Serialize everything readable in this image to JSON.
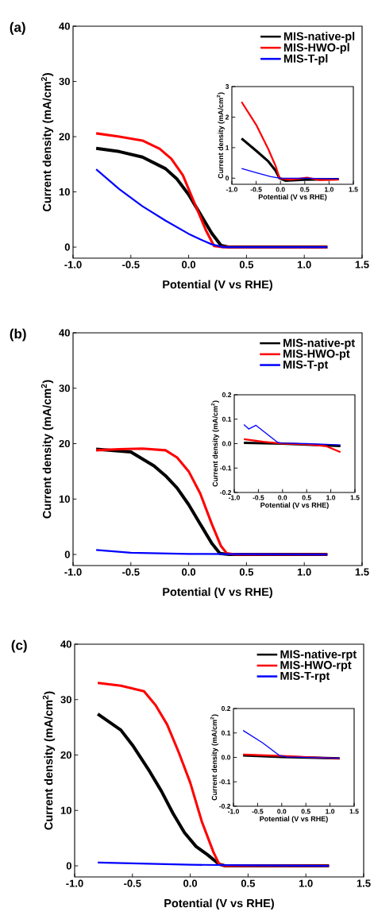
{
  "chart_data": [
    {
      "type": "line",
      "annotations": [
        "(a)"
      ],
      "xlabel": "Potential (V vs RHE)",
      "ylabel": "Current density (mA/cm$^{2}$)",
      "xlim": [
        -1,
        1.5
      ],
      "ylim": [
        -2,
        40
      ],
      "xticks": [
        {
          "value": -1,
          "label": "-1.0"
        },
        {
          "value": -0.5,
          "label": "-0.5"
        },
        {
          "value": 0,
          "label": "0.0"
        },
        {
          "value": 0.5,
          "label": "0.5"
        },
        {
          "value": 1,
          "label": "1.0"
        },
        {
          "value": 1.5,
          "label": "1.5"
        }
      ],
      "yticks": [
        0,
        10,
        20,
        30,
        40
      ],
      "legend": "top right",
      "series": [
        {
          "name": "MIS-native-pl",
          "color": "#000000",
          "x": [
            -0.8,
            -0.6,
            -0.4,
            -0.2,
            -0.1,
            0,
            0.1,
            0.2,
            0.28,
            0.35,
            1.2
          ],
          "values": [
            17.9,
            17.3,
            16.3,
            14.2,
            12.3,
            9.5,
            6,
            2.5,
            0.3,
            0,
            0
          ]
        },
        {
          "name": "MIS-HWO-pl",
          "color": "#ff0000",
          "x": [
            -0.8,
            -0.6,
            -0.4,
            -0.25,
            -0.15,
            -0.05,
            0.05,
            0.15,
            0.22,
            0.3,
            1.2
          ],
          "values": [
            20.6,
            20,
            19.3,
            17.8,
            16,
            13,
            8,
            3,
            0.2,
            0,
            0
          ]
        },
        {
          "name": "MIS-T-pl",
          "color": "#0000ff",
          "x": [
            -0.8,
            -0.6,
            -0.4,
            -0.2,
            0,
            0.1,
            0.2,
            0.3,
            1.2
          ],
          "values": [
            14.1,
            10.5,
            7.4,
            4.8,
            2.4,
            1.4,
            0.5,
            0,
            0
          ]
        }
      ]
    },
    {
      "type": "line",
      "xlabel": "Potential (V vs RHE)",
      "ylabel": "Current density (mA/cm$^{2}$)",
      "xlim": [
        -1,
        1.5
      ],
      "ylim": [
        -0.2,
        3
      ],
      "xticks": [
        {
          "value": -1,
          "label": "-1.0"
        },
        {
          "value": -0.5,
          "label": "-0.5"
        },
        {
          "value": 0,
          "label": "0.0"
        },
        {
          "value": 0.5,
          "label": "0.5"
        },
        {
          "value": 1,
          "label": "1.0"
        },
        {
          "value": 1.5,
          "label": "1.5"
        }
      ],
      "yticks": [
        0,
        1,
        2,
        3
      ],
      "series": [
        {
          "color": "#000000",
          "x": [
            -0.8,
            -0.5,
            -0.25,
            -0.1,
            -0.02,
            0.1,
            0.5,
            1.2
          ],
          "values": [
            1.3,
            0.9,
            0.55,
            0.25,
            0,
            -0.08,
            -0.05,
            -0.03
          ]
        },
        {
          "color": "#ff0000",
          "x": [
            -0.8,
            -0.5,
            -0.25,
            -0.1,
            -0.02,
            0.2,
            0.55,
            0.8,
            1.2
          ],
          "values": [
            2.5,
            1.75,
            0.95,
            0.4,
            0,
            -0.05,
            0.02,
            -0.06,
            -0.05
          ]
        },
        {
          "color": "#0000ff",
          "x": [
            -0.8,
            -0.5,
            -0.2,
            0,
            0.5,
            1.2
          ],
          "values": [
            0.32,
            0.18,
            0.05,
            0,
            0,
            -0.02
          ]
        }
      ]
    },
    {
      "type": "line",
      "annotations": [
        "(b)"
      ],
      "xlabel": "Potential (V vs RHE)",
      "ylabel": "Current density (mA/cm$^{2}$)",
      "xlim": [
        -1,
        1.5
      ],
      "ylim": [
        -2,
        40
      ],
      "xticks": [
        {
          "value": -1,
          "label": "-1.0"
        },
        {
          "value": -0.5,
          "label": "-0.5"
        },
        {
          "value": 0,
          "label": "0.0"
        },
        {
          "value": 0.5,
          "label": "0.5"
        },
        {
          "value": 1,
          "label": "1.0"
        },
        {
          "value": 1.5,
          "label": "1.5"
        }
      ],
      "yticks": [
        0,
        10,
        20,
        30,
        40
      ],
      "legend": "top right",
      "series": [
        {
          "name": "MIS-native-pt",
          "color": "#000000",
          "x": [
            -0.8,
            -0.5,
            -0.3,
            -0.2,
            -0.1,
            0,
            0.1,
            0.2,
            0.27,
            0.35,
            1.2
          ],
          "values": [
            19,
            18.5,
            16,
            14.2,
            12,
            9,
            5.5,
            2,
            0.2,
            0,
            0
          ]
        },
        {
          "name": "MIS-HWO-pt",
          "color": "#ff0000",
          "x": [
            -0.8,
            -0.6,
            -0.4,
            -0.2,
            -0.1,
            0,
            0.1,
            0.2,
            0.28,
            0.33,
            0.4,
            1.2
          ],
          "values": [
            18.8,
            19,
            19.1,
            18.8,
            17.5,
            15,
            11,
            5.5,
            1.5,
            0.2,
            0,
            0
          ]
        },
        {
          "name": "MIS-T-pt",
          "color": "#0000ff",
          "x": [
            -0.8,
            -0.5,
            0,
            1.2
          ],
          "values": [
            0.8,
            0.3,
            0.1,
            0
          ]
        }
      ]
    },
    {
      "type": "line",
      "xlabel": "Potential (V vs RHE)",
      "ylabel": "Current density (mA/cm$^{2}$)",
      "xlim": [
        -1,
        1.5
      ],
      "ylim": [
        -0.2,
        0.2
      ],
      "xticks": [
        {
          "value": -1,
          "label": "-1.0"
        },
        {
          "value": -0.5,
          "label": "-0.5"
        },
        {
          "value": 0,
          "label": "0.0"
        },
        {
          "value": 0.5,
          "label": "0.5"
        },
        {
          "value": 1,
          "label": "1.0"
        },
        {
          "value": 1.5,
          "label": "1.5"
        }
      ],
      "yticks": [
        {
          "value": -0.2,
          "label": "-0.2"
        },
        {
          "value": -0.1,
          "label": "-0.1"
        },
        {
          "value": 0,
          "label": "0.0"
        },
        0.1,
        0.2
      ],
      "series": [
        {
          "color": "#000000",
          "x": [
            -0.8,
            0,
            1.2
          ],
          "values": [
            0.003,
            0,
            -0.01
          ]
        },
        {
          "color": "#ff0000",
          "x": [
            -0.8,
            -0.4,
            0,
            0.5,
            0.9,
            1.2
          ],
          "values": [
            0.018,
            0.008,
            0,
            -0.003,
            -0.01,
            -0.035
          ]
        },
        {
          "color": "#0000ff",
          "x": [
            -0.8,
            -0.7,
            -0.55,
            -0.1,
            0,
            0.5,
            1.2
          ],
          "values": [
            0.078,
            0.06,
            0.075,
            0.005,
            0.002,
            0,
            -0.005
          ]
        }
      ]
    },
    {
      "type": "line",
      "annotations": [
        "(c)"
      ],
      "xlabel": "Potential (V vs RHE)",
      "ylabel": "Current density (mA/cm$^{2}$)",
      "xlim": [
        -1,
        1.5
      ],
      "ylim": [
        -2,
        40
      ],
      "xticks": [
        {
          "value": -1,
          "label": "-1.0"
        },
        {
          "value": -0.5,
          "label": "-0.5"
        },
        {
          "value": 0,
          "label": "0.0"
        },
        {
          "value": 0.5,
          "label": "0.5"
        },
        {
          "value": 1,
          "label": "1.0"
        },
        {
          "value": 1.5,
          "label": "1.5"
        }
      ],
      "yticks": [
        0,
        10,
        20,
        30,
        40
      ],
      "legend": "top right",
      "series": [
        {
          "name": "MIS-native-rpt",
          "color": "#000000",
          "x": [
            -0.8,
            -0.6,
            -0.5,
            -0.35,
            -0.25,
            -0.15,
            -0.05,
            0.05,
            0.15,
            0.25,
            0.3,
            1.2
          ],
          "values": [
            27.4,
            24.5,
            21.8,
            17,
            13.5,
            9.5,
            6,
            3.5,
            2,
            0.3,
            0,
            0
          ]
        },
        {
          "name": "MIS-HWO-rpt",
          "color": "#ff0000",
          "x": [
            -0.8,
            -0.6,
            -0.4,
            -0.3,
            -0.2,
            -0.1,
            0,
            0.1,
            0.2,
            0.25,
            0.3,
            1.2
          ],
          "values": [
            33,
            32.5,
            31.5,
            29,
            25.5,
            20.5,
            15,
            8,
            2.5,
            0.3,
            0,
            0
          ]
        },
        {
          "name": "MIS-T-rpt",
          "color": "#0000ff",
          "x": [
            -0.8,
            -0.4,
            0,
            0.5,
            1.2
          ],
          "values": [
            0.6,
            0.4,
            0.2,
            0.1,
            0
          ]
        }
      ]
    },
    {
      "type": "line",
      "xlabel": "Potential (V vs RHE)",
      "ylabel": "Current density (mA/cm$^{2}$)",
      "xlim": [
        -1,
        1.5
      ],
      "ylim": [
        -0.2,
        0.2
      ],
      "xticks": [
        {
          "value": -1,
          "label": "-1.0"
        },
        {
          "value": -0.5,
          "label": "-0.5"
        },
        {
          "value": 0,
          "label": "0.0"
        },
        {
          "value": 0.5,
          "label": "0.5"
        },
        {
          "value": 1,
          "label": "1.0"
        },
        {
          "value": 1.5,
          "label": "1.5"
        }
      ],
      "yticks": [
        {
          "value": -0.2,
          "label": "-0.2"
        },
        {
          "value": -0.1,
          "label": "-0.1"
        },
        {
          "value": 0,
          "label": "0.0"
        },
        0.1,
        0.2
      ],
      "series": [
        {
          "color": "#000000",
          "x": [
            -0.8,
            0,
            1.2
          ],
          "values": [
            0.008,
            0.002,
            -0.004
          ]
        },
        {
          "color": "#ff0000",
          "x": [
            -0.8,
            0,
            1.2
          ],
          "values": [
            0.012,
            0.006,
            -0.005
          ]
        },
        {
          "color": "#0000ff",
          "x": [
            -0.8,
            -0.4,
            -0.05,
            0.1,
            1.2
          ],
          "values": [
            0.11,
            0.06,
            0.008,
            0.002,
            -0.004
          ]
        }
      ]
    }
  ]
}
